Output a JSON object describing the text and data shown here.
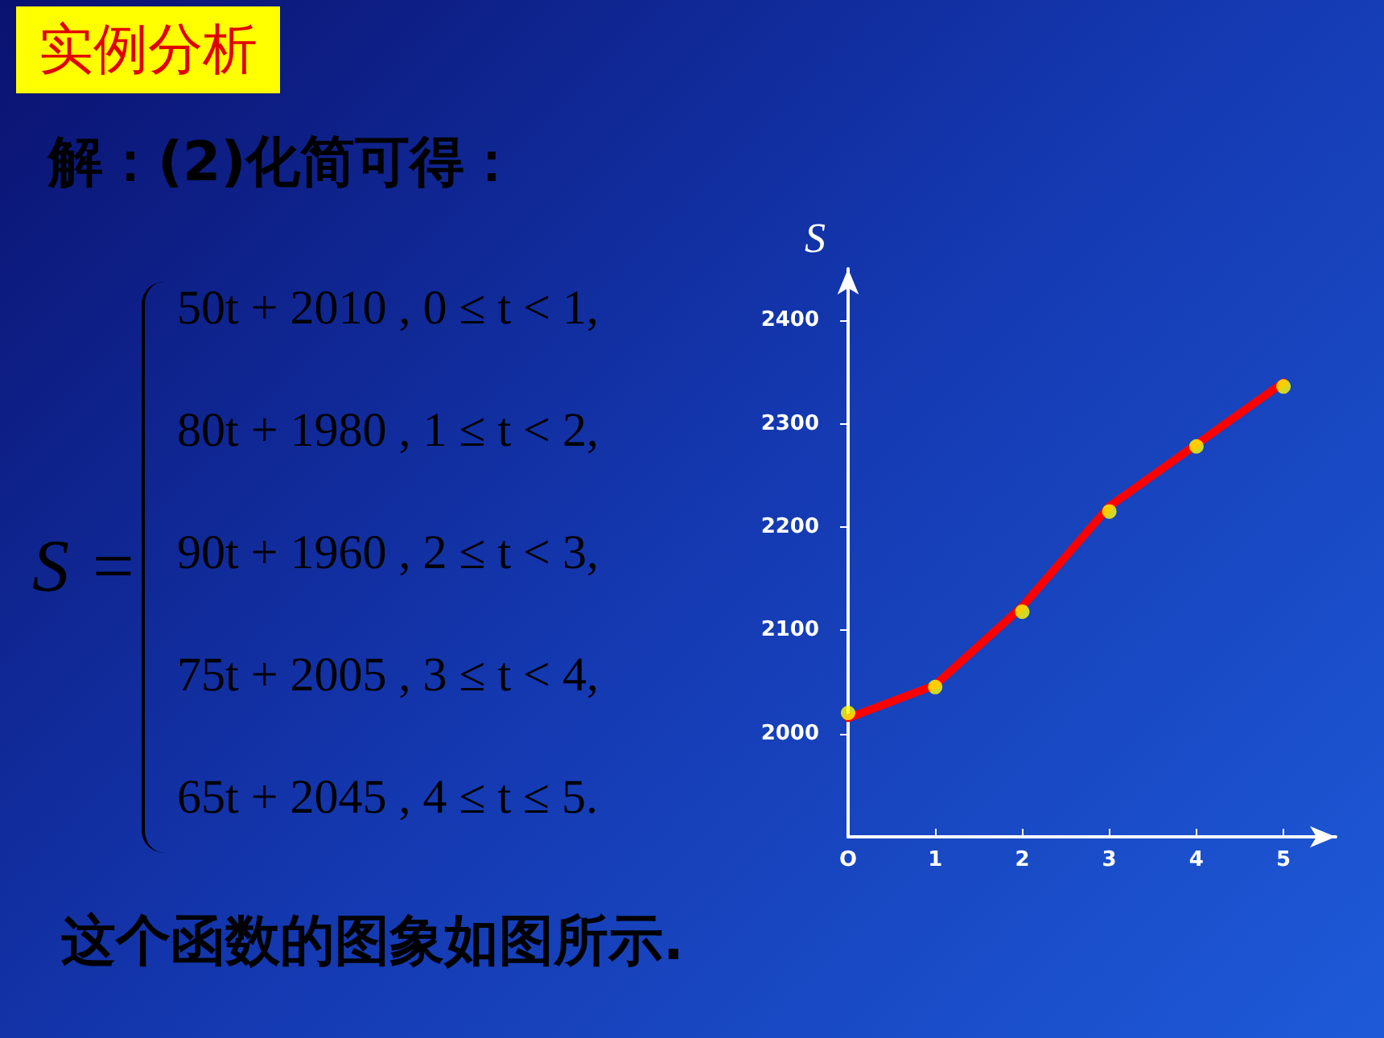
{
  "chart_data": {
    "type": "line",
    "title": "实例分析",
    "subtitle": "解：(2)化简可得：",
    "annotations": [
      "S =",
      "50t + 2010 ,   0 ≤ t < 1,",
      "80t + 1980 ,   1 ≤ t < 2,",
      "90t + 1960 ,   2 ≤ t < 3,",
      "75t + 2005 ,   3 ≤ t < 4,",
      "65t + 2045 ,   4 ≤ t ≤ 5.",
      "这个函数的图象如图所示."
    ],
    "ylabel": "S",
    "x": [
      0,
      1,
      2,
      3,
      4,
      5
    ],
    "series": [
      {
        "color": "#ff0000",
        "values": [
          2015,
          2047,
          2123,
          2220,
          2280,
          2340
        ]
      },
      {
        "type": "scatter",
        "color": "#ffff00",
        "values": [
          2020,
          2045,
          2118,
          2215,
          2278,
          2336
        ]
      }
    ],
    "xlim": [
      0,
      5.6
    ],
    "xticks": [
      {
        "value": 0,
        "label": "O"
      },
      1,
      2,
      3,
      4,
      5
    ],
    "ylim": [
      1900,
      2450
    ],
    "yticks": [
      2000,
      2100,
      2200,
      2300,
      2400
    ],
    "grid": false,
    "line_style": "solid"
  }
}
